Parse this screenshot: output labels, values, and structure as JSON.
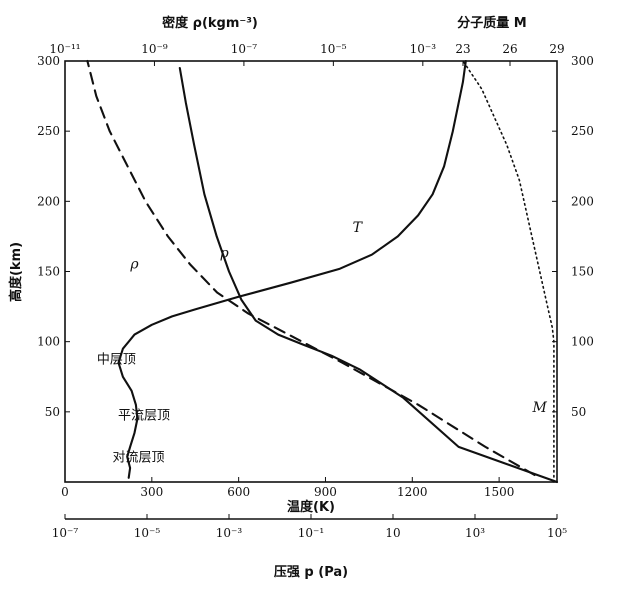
{
  "chart_data": {
    "type": "line",
    "axes": {
      "left": {
        "label": "高度(km)",
        "range": [
          0,
          300
        ],
        "ticks": [
          "50",
          "100",
          "150",
          "200",
          "250",
          "300"
        ],
        "tick_values": [
          50,
          100,
          150,
          200,
          250,
          300
        ]
      },
      "right": {
        "range": [
          0,
          300
        ],
        "ticks": [
          "50",
          "100",
          "150",
          "200",
          "250",
          "300"
        ],
        "tick_values": [
          50,
          100,
          150,
          200,
          250,
          300
        ]
      },
      "bottom_temperature": {
        "label": "温度(K)",
        "range": [
          0,
          1700
        ],
        "ticks": [
          "0",
          "300",
          "600",
          "900",
          "1200",
          "1500"
        ],
        "tick_values": [
          0,
          300,
          600,
          900,
          1200,
          1500
        ]
      },
      "bottom_pressure": {
        "label": "压强 p (Pa)",
        "log_range_exp": [
          -7,
          5
        ],
        "ticks": [
          "10⁻⁷",
          "10⁻⁵",
          "10⁻³",
          "10⁻¹",
          "10",
          "10³",
          "10⁵"
        ],
        "tick_exponents": [
          -7,
          -5,
          -3,
          -1,
          1,
          3,
          5
        ]
      },
      "top_density": {
        "label": "密度 ρ(kgm⁻³)",
        "log_range_exp": [
          -11,
          0
        ],
        "ticks": [
          "10⁻¹¹",
          "10⁻⁹",
          "10⁻⁷",
          "10⁻⁵",
          "10⁻³"
        ],
        "tick_exponents": [
          -11,
          -9,
          -7,
          -5,
          -3
        ]
      },
      "top_molecular_mass": {
        "label": "分子质量 M",
        "range": [
          23,
          29
        ],
        "ticks": [
          "23",
          "26",
          "29"
        ],
        "tick_values": [
          23,
          26,
          29
        ]
      }
    },
    "series": [
      {
        "name": "T",
        "axis": "temperature",
        "style": "solid",
        "points": [
          [
            220,
            3
          ],
          [
            225,
            10
          ],
          [
            215,
            18
          ],
          [
            225,
            25
          ],
          [
            240,
            35
          ],
          [
            250,
            45
          ],
          [
            245,
            55
          ],
          [
            230,
            65
          ],
          [
            200,
            75
          ],
          [
            185,
            85
          ],
          [
            200,
            95
          ],
          [
            240,
            105
          ],
          [
            300,
            112
          ],
          [
            370,
            118
          ],
          [
            450,
            123
          ],
          [
            600,
            132
          ],
          [
            780,
            142
          ],
          [
            950,
            152
          ],
          [
            1060,
            162
          ],
          [
            1150,
            175
          ],
          [
            1220,
            190
          ],
          [
            1270,
            205
          ],
          [
            1310,
            225
          ],
          [
            1340,
            250
          ],
          [
            1360,
            270
          ],
          [
            1375,
            285
          ],
          [
            1385,
            300
          ]
        ]
      },
      {
        "name": "p",
        "axis": "pressure",
        "style": "solid",
        "points": [
          [
            5.0,
            0
          ],
          [
            2.6,
            25
          ],
          [
            1.25,
            60
          ],
          [
            0.2,
            80
          ],
          [
            -0.5,
            90
          ],
          [
            -1.2,
            98
          ],
          [
            -1.8,
            105
          ],
          [
            -2.35,
            115
          ],
          [
            -2.7,
            130
          ],
          [
            -3.0,
            150
          ],
          [
            -3.3,
            175
          ],
          [
            -3.6,
            205
          ],
          [
            -3.85,
            240
          ],
          [
            -4.05,
            270
          ],
          [
            -4.2,
            295
          ]
        ]
      },
      {
        "name": "ρ",
        "axis": "density",
        "style": "dashed",
        "points": [
          [
            -0.5,
            5
          ],
          [
            -1.6,
            25
          ],
          [
            -3.1,
            55
          ],
          [
            -4.8,
            85
          ],
          [
            -6.0,
            105
          ],
          [
            -6.9,
            120
          ],
          [
            -7.6,
            135
          ],
          [
            -8.2,
            155
          ],
          [
            -8.7,
            175
          ],
          [
            -9.2,
            200
          ],
          [
            -9.6,
            225
          ],
          [
            -10.0,
            250
          ],
          [
            -10.3,
            275
          ],
          [
            -10.5,
            300
          ]
        ]
      },
      {
        "name": "M",
        "axis": "molecular_mass",
        "style": "dotted",
        "points": [
          [
            28.8,
            0
          ],
          [
            28.8,
            60
          ],
          [
            28.8,
            100
          ],
          [
            28.7,
            110
          ],
          [
            28.3,
            130
          ],
          [
            27.7,
            160
          ],
          [
            27.1,
            190
          ],
          [
            26.6,
            215
          ],
          [
            25.8,
            240
          ],
          [
            25.0,
            260
          ],
          [
            24.2,
            280
          ],
          [
            23.0,
            300
          ]
        ]
      }
    ],
    "annotations": [
      {
        "text": "中层顶",
        "temperature": 110,
        "altitude": 88
      },
      {
        "text": "平流层顶",
        "temperature": 183,
        "altitude": 48
      },
      {
        "text": "对流层顶",
        "temperature": 164,
        "altitude": 18
      }
    ],
    "curve_labels": [
      {
        "text": "T",
        "temperature": 1010,
        "altitude": 178
      },
      {
        "text": "p",
        "temperature": 550,
        "altitude": 160
      },
      {
        "text": "ρ",
        "temperature": 240,
        "altitude": 152
      },
      {
        "text": "M",
        "temperature": 1640,
        "altitude": 50
      }
    ]
  }
}
